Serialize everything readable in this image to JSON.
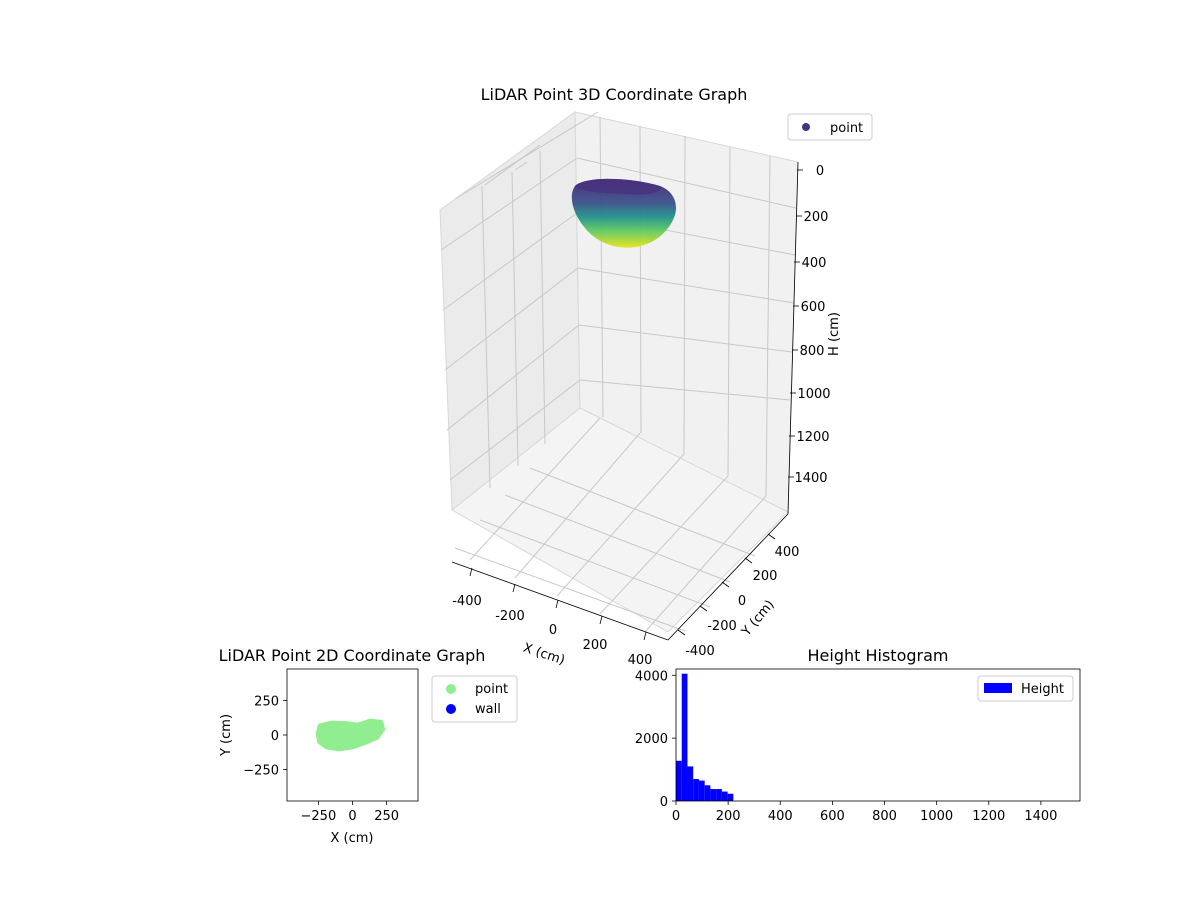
{
  "chart_data": [
    {
      "type": "scatter3d",
      "title": "LiDAR Point 3D Coordinate Graph",
      "xlabel": "X (cm)",
      "ylabel": "Y (cm)",
      "zlabel": "H (cm)",
      "xticks": [
        -400,
        -200,
        0,
        200,
        400
      ],
      "yticks": [
        -400,
        -200,
        0,
        200,
        400
      ],
      "zticks": [
        0,
        200,
        400,
        600,
        800,
        1000,
        1200,
        1400
      ],
      "zlim": [
        0,
        1500
      ],
      "legend": [
        "point"
      ],
      "legend_position": "top-right",
      "colormap": "viridis",
      "cluster": {
        "x_range": [
          -230,
          230
        ],
        "y_range": [
          -110,
          110
        ],
        "h_range": [
          0,
          220
        ]
      }
    },
    {
      "type": "scatter",
      "title": "LiDAR Point 2D Coordinate Graph",
      "xlabel": "X (cm)",
      "ylabel": "Y (cm)",
      "xticks": [
        -250,
        0,
        250
      ],
      "xtick_labels": [
        "−250",
        "0",
        "250"
      ],
      "yticks": [
        250,
        0,
        -250
      ],
      "ytick_labels": [
        "250",
        "0",
        "−250"
      ],
      "xlim": [
        -480,
        480
      ],
      "ylim": [
        -480,
        480
      ],
      "series": [
        {
          "name": "point",
          "color": "#90ee90"
        },
        {
          "name": "wall",
          "color": "#0000ff"
        }
      ],
      "legend_position": "outside-right",
      "cluster_outline": [
        [
          -240,
          70
        ],
        [
          -150,
          90
        ],
        [
          -40,
          85
        ],
        [
          40,
          75
        ],
        [
          130,
          105
        ],
        [
          210,
          95
        ],
        [
          225,
          40
        ],
        [
          180,
          -20
        ],
        [
          100,
          -55
        ],
        [
          0,
          -90
        ],
        [
          -100,
          -105
        ],
        [
          -190,
          -90
        ],
        [
          -245,
          -50
        ],
        [
          -255,
          10
        ]
      ]
    },
    {
      "type": "bar",
      "title": "Height Histogram",
      "xlabel": "",
      "ylabel": "",
      "xticks": [
        0,
        200,
        400,
        600,
        800,
        1000,
        1200,
        1400
      ],
      "yticks": [
        0,
        2000,
        4000
      ],
      "xlim": [
        0,
        1550
      ],
      "ylim": [
        0,
        4200
      ],
      "bin_width": 22,
      "bin_starts": [
        0,
        22,
        44,
        66,
        88,
        110,
        132,
        154,
        176,
        198
      ],
      "values": [
        1280,
        4050,
        1100,
        700,
        650,
        500,
        380,
        380,
        300,
        230
      ],
      "series": [
        {
          "name": "Height",
          "color": "#0000ff"
        }
      ],
      "legend_position": "top-right"
    }
  ]
}
